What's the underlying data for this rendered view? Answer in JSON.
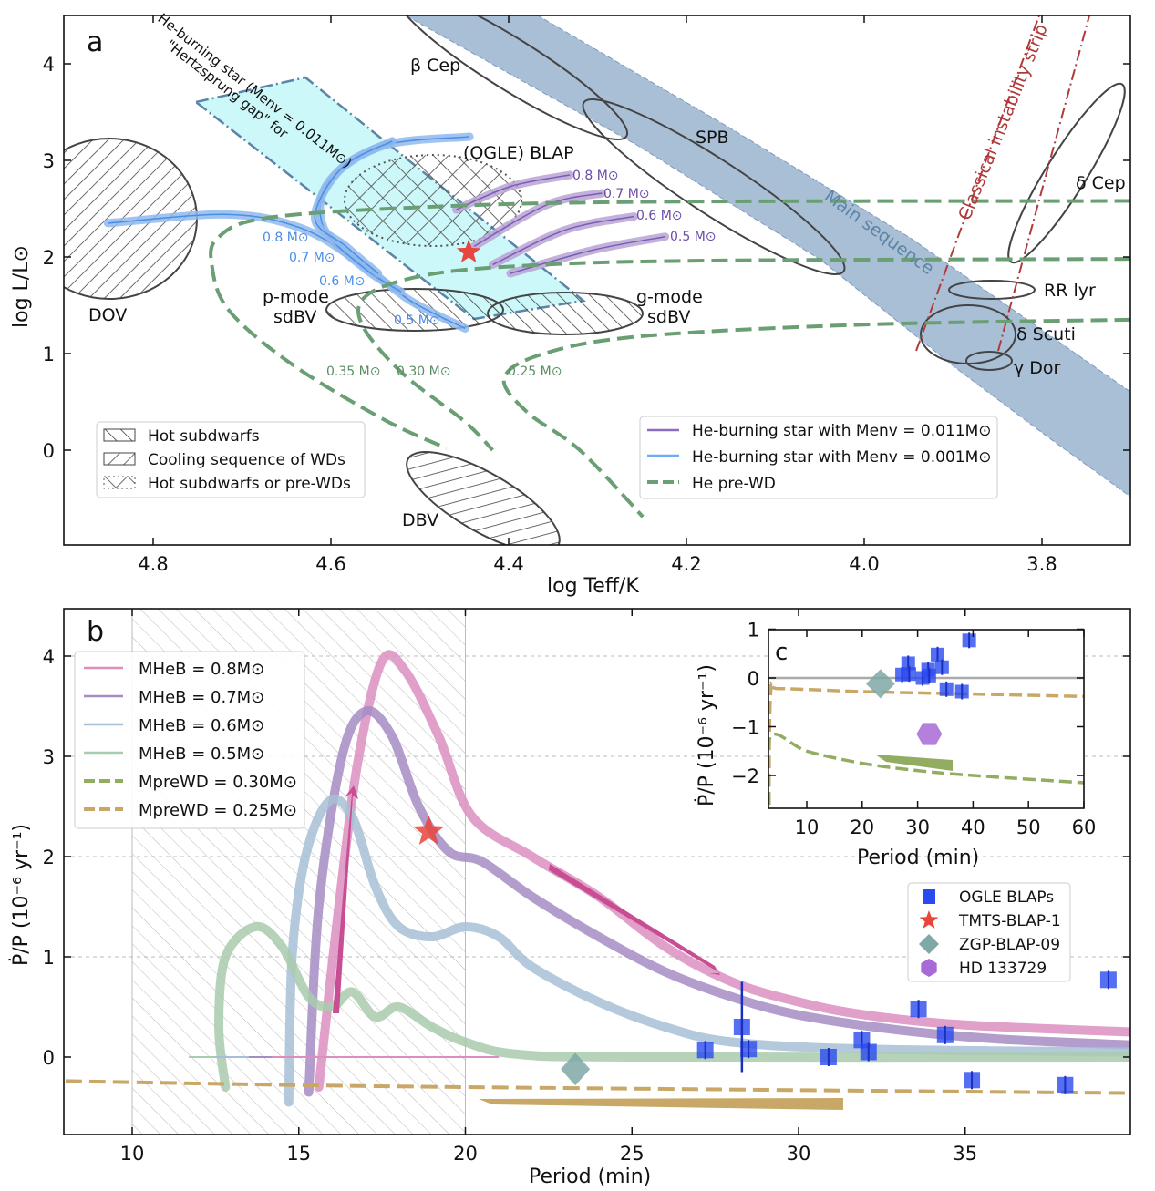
{
  "chart_data": [
    {
      "panel": "a",
      "type": "line",
      "xlabel": "log Teff/K",
      "ylabel": "log L/L⊙",
      "xlim": [
        4.9,
        3.7
      ],
      "ylim": [
        -1.0,
        4.5
      ],
      "xticks": [
        "4.8",
        "4.6",
        "4.4",
        "4.2",
        "4.0",
        "3.8"
      ],
      "xtick_values": [
        4.8,
        4.6,
        4.4,
        4.2,
        4.0,
        3.8
      ],
      "yticks": [
        "0",
        "1",
        "2",
        "3",
        "4"
      ],
      "ytick_values": [
        0,
        1,
        2,
        3,
        4
      ],
      "region_labels": {
        "beta_cep": "β Cep",
        "spb": "SPB",
        "blap": "(OGLE) BLAP",
        "main_sequence": "Main sequence",
        "instability_strip": "Classical instability strip",
        "delta_cep": "δ Cep",
        "rr_lyr": "RR lyr",
        "delta_scuti": "δ Scuti",
        "gamma_dor": "γ Dor",
        "dov": "DOV",
        "dbv": "DBV",
        "p_mode": "p-mode",
        "p_mode2": "sdBV",
        "g_mode": "g-mode",
        "g_mode2": "sdBV",
        "gap_line1": "\"Hertzsprung gap\" for",
        "gap_line2": "He-burning star (Menv = 0.011M⊙)"
      },
      "mass_labels_blue": [
        "0.8 M⊙",
        "0.7 M⊙",
        "0.6 M⊙",
        "0.5 M⊙"
      ],
      "mass_labels_purple": [
        "0.8 M⊙",
        "0.7 M⊙",
        "0.6 M⊙",
        "0.5 M⊙"
      ],
      "mass_labels_green": [
        "0.35 M⊙",
        "0.30 M⊙",
        "0.25 M⊙"
      ],
      "legend_left": [
        "Hot subdwarfs",
        "Cooling sequence of WDs",
        "Hot subdwarfs or pre-WDs"
      ],
      "legend_right": [
        "He-burning star with Menv = 0.011M⊙",
        "He-burning star with Menv = 0.001M⊙",
        "He pre-WD"
      ],
      "tmts_star": {
        "logT": 4.445,
        "logL": 2.05
      },
      "series": [
        {
          "group": "He-burning Menv=0.001",
          "color": "#8fb8ec",
          "points": [
            [
              4.851,
              2.35
            ],
            [
              4.716,
              2.44
            ],
            [
              4.634,
              2.3
            ],
            [
              4.572,
              1.97
            ],
            [
              4.511,
              1.55
            ],
            [
              4.449,
              1.26
            ]
          ]
        },
        {
          "group": "He-burning Menv=0.001",
          "color": "#8fb8ec",
          "points": [
            [
              4.444,
              3.245
            ],
            [
              4.542,
              3.15
            ],
            [
              4.603,
              2.77
            ],
            [
              4.608,
              2.3
            ],
            [
              4.562,
              1.88
            ],
            [
              4.521,
              1.64
            ]
          ]
        },
        {
          "group": "He-burning Menv=0.001",
          "color": "#8fb8ec",
          "points": [
            [
              4.531,
              3.2
            ],
            [
              4.588,
              2.92
            ],
            [
              4.618,
              2.4
            ],
            [
              4.583,
              2.11
            ],
            [
              4.547,
              1.83
            ]
          ]
        },
        {
          "group": "He-burning Menv=0.011",
          "color": "#b9a3d3",
          "points": [
            [
              4.459,
              2.49
            ],
            [
              4.398,
              2.73
            ],
            [
              4.331,
              2.85
            ]
          ]
        },
        {
          "group": "He-burning Menv=0.011",
          "color": "#b9a3d3",
          "points": [
            [
              4.439,
              2.11
            ],
            [
              4.357,
              2.54
            ],
            [
              4.295,
              2.66
            ]
          ]
        },
        {
          "group": "He-burning Menv=0.011",
          "color": "#b9a3d3",
          "points": [
            [
              4.418,
              1.92
            ],
            [
              4.336,
              2.28
            ],
            [
              4.259,
              2.42
            ]
          ]
        },
        {
          "group": "He-burning Menv=0.011",
          "color": "#b9a3d3",
          "points": [
            [
              4.398,
              1.83
            ],
            [
              4.306,
              2.07
            ],
            [
              4.224,
              2.21
            ]
          ]
        },
        {
          "group": "He pre-WD",
          "color": "#6a9f74",
          "points": [
            [
              3.7,
              2.58
            ],
            [
              4.254,
              2.57
            ],
            [
              4.511,
              2.51
            ],
            [
              4.675,
              2.4
            ],
            [
              4.727,
              2.2
            ],
            [
              4.734,
              1.92
            ],
            [
              4.715,
              1.45
            ],
            [
              4.644,
              0.89
            ],
            [
              4.541,
              0.32
            ],
            [
              4.47,
              0.02
            ]
          ]
        },
        {
          "group": "He pre-WD",
          "color": "#6a9f74",
          "points": [
            [
              3.7,
              1.98
            ],
            [
              4.2,
              1.96
            ],
            [
              4.4,
              1.9
            ],
            [
              4.5,
              1.8
            ],
            [
              4.56,
              1.6
            ],
            [
              4.565,
              1.3
            ],
            [
              4.52,
              0.8
            ],
            [
              4.45,
              0.3
            ],
            [
              4.418,
              0.0
            ]
          ]
        },
        {
          "group": "He pre-WD",
          "color": "#6a9f74",
          "points": [
            [
              3.7,
              1.35
            ],
            [
              4.0,
              1.3
            ],
            [
              4.25,
              1.18
            ],
            [
              4.36,
              1.0
            ],
            [
              4.405,
              0.75
            ],
            [
              4.38,
              0.4
            ],
            [
              4.32,
              0.0
            ],
            [
              4.249,
              -0.69
            ]
          ]
        }
      ]
    },
    {
      "panel": "b",
      "type": "line",
      "xlabel": "Period (min)",
      "ylabel": "Ṗ/P (10⁻⁶ yr⁻¹)",
      "xlim": [
        8,
        40
      ],
      "ylim": [
        -0.77,
        4.47
      ],
      "xticks": [
        "10",
        "15",
        "20",
        "25",
        "30",
        "35"
      ],
      "xtick_values": [
        10,
        15,
        20,
        25,
        30,
        35
      ],
      "yticks": [
        "0",
        "1",
        "2",
        "3",
        "4"
      ],
      "ytick_values": [
        0,
        1,
        2,
        3,
        4
      ],
      "grid": "horizontal dashed",
      "shaded_band": [
        10,
        20
      ],
      "legend": [
        "MHeB = 0.8M⊙",
        "MHeB = 0.7M⊙",
        "MHeB = 0.6M⊙",
        "MHeB = 0.5M⊙",
        "MpreWD = 0.30M⊙",
        "MpreWD = 0.25M⊙"
      ],
      "series": [
        {
          "name": "MHeB = 0.8M⊙",
          "color": "#dc8fbf",
          "points": [
            [
              15.6,
              -0.3
            ],
            [
              16.2,
              1.5
            ],
            [
              16.8,
              3.0
            ],
            [
              17.5,
              3.95
            ],
            [
              18.2,
              3.85
            ],
            [
              19.2,
              3.2
            ],
            [
              20.2,
              2.4
            ],
            [
              22,
              2.0
            ],
            [
              24,
              1.6
            ],
            [
              26,
              1.1
            ],
            [
              28,
              0.75
            ],
            [
              30,
              0.55
            ],
            [
              32,
              0.42
            ],
            [
              35,
              0.32
            ],
            [
              40,
              0.25
            ]
          ]
        },
        {
          "name": "MHeB = 0.7M⊙",
          "color": "#a48cc4",
          "points": [
            [
              15.3,
              -0.35
            ],
            [
              15.6,
              1.5
            ],
            [
              16.3,
              3.0
            ],
            [
              17.0,
              3.45
            ],
            [
              17.8,
              3.2
            ],
            [
              18.6,
              2.5
            ],
            [
              19.5,
              2.05
            ],
            [
              20.5,
              1.95
            ],
            [
              22,
              1.6
            ],
            [
              24,
              1.2
            ],
            [
              26,
              0.85
            ],
            [
              28,
              0.6
            ],
            [
              30,
              0.42
            ],
            [
              33,
              0.27
            ],
            [
              36,
              0.18
            ],
            [
              40,
              0.12
            ]
          ]
        },
        {
          "name": "MHeB = 0.6M⊙",
          "color": "#a7bfd6",
          "points": [
            [
              14.7,
              -0.45
            ],
            [
              14.8,
              1.0
            ],
            [
              15.2,
              2.0
            ],
            [
              15.9,
              2.55
            ],
            [
              16.6,
              2.4
            ],
            [
              17.3,
              1.7
            ],
            [
              18.0,
              1.3
            ],
            [
              19,
              1.2
            ],
            [
              20,
              1.3
            ],
            [
              21,
              1.2
            ],
            [
              22,
              0.9
            ],
            [
              24,
              0.55
            ],
            [
              26,
              0.3
            ],
            [
              28,
              0.15
            ],
            [
              32,
              0.08
            ],
            [
              40,
              0.05
            ]
          ]
        },
        {
          "name": "MHeB = 0.5M⊙",
          "color": "#a9cbae",
          "points": [
            [
              12.8,
              -0.3
            ],
            [
              12.6,
              0.3
            ],
            [
              12.8,
              1.0
            ],
            [
              13.7,
              1.3
            ],
            [
              14.5,
              1.1
            ],
            [
              15.3,
              0.6
            ],
            [
              16,
              0.5
            ],
            [
              16.6,
              0.65
            ],
            [
              17.3,
              0.4
            ],
            [
              18,
              0.5
            ],
            [
              19,
              0.3
            ],
            [
              20,
              0.15
            ],
            [
              21.5,
              0.03
            ],
            [
              25,
              0.0
            ],
            [
              40,
              0.0
            ]
          ]
        },
        {
          "name": "MpreWD = 0.25M⊙",
          "color": "#c9a867",
          "dashed": true,
          "points": [
            [
              8,
              -0.24
            ],
            [
              15,
              -0.28
            ],
            [
              20,
              -0.3
            ],
            [
              30,
              -0.33
            ],
            [
              40,
              -0.36
            ]
          ]
        }
      ],
      "observations": {
        "ogle_blaps": [
          [
            27.2,
            0.07
          ],
          [
            28.3,
            0.3
          ],
          [
            28.5,
            0.08
          ],
          [
            30.9,
            0.0
          ],
          [
            31.9,
            0.17
          ],
          [
            32.1,
            0.05
          ],
          [
            33.6,
            0.48
          ],
          [
            34.4,
            0.22
          ],
          [
            35.2,
            -0.23
          ],
          [
            38.0,
            -0.28
          ],
          [
            39.3,
            0.77
          ]
        ],
        "tmts_blap_1": [
          18.9,
          2.25
        ],
        "zgp_blap_09": [
          23.3,
          -0.12
        ]
      }
    },
    {
      "panel": "c",
      "type": "scatter",
      "xlabel": "Period (min)",
      "ylabel": "Ṗ/P (10⁻⁶ yr⁻¹)",
      "xlim": [
        3,
        60
      ],
      "ylim": [
        -2.67,
        1
      ],
      "xticks": [
        "10",
        "20",
        "30",
        "40",
        "50",
        "60"
      ],
      "xtick_values": [
        10,
        20,
        30,
        40,
        50,
        60
      ],
      "yticks": [
        "1",
        "0",
        "−1",
        "−2"
      ],
      "ytick_values": [
        1,
        0,
        -1,
        -2
      ],
      "legend": [
        "OGLE BLAPs",
        "TMTS-BLAP-1",
        "ZGP-BLAP-09",
        "HD 133729"
      ],
      "series": [
        {
          "name": "MpreWD = 0.25M⊙",
          "color": "#c9a867",
          "points": [
            [
              3.2,
              -2.6
            ],
            [
              3.5,
              -0.3
            ],
            [
              5,
              -0.22
            ],
            [
              20,
              -0.28
            ],
            [
              40,
              -0.33
            ],
            [
              60,
              -0.38
            ]
          ]
        },
        {
          "name": "MpreWD = 0.30M⊙",
          "color": "#92ad62",
          "points": [
            [
              3.2,
              -2.6
            ],
            [
              3.5,
              -1.2
            ],
            [
              10,
              -1.5
            ],
            [
              20,
              -1.75
            ],
            [
              30,
              -1.9
            ],
            [
              40,
              -2.0
            ],
            [
              60,
              -2.15
            ]
          ]
        }
      ],
      "observations": {
        "ogle_blaps": [
          [
            27.2,
            0.07
          ],
          [
            28.3,
            0.3
          ],
          [
            28.5,
            0.08
          ],
          [
            30.9,
            0.0
          ],
          [
            31.9,
            0.17
          ],
          [
            32.1,
            0.05
          ],
          [
            33.6,
            0.48
          ],
          [
            34.4,
            0.22
          ],
          [
            35.2,
            -0.23
          ],
          [
            38.0,
            -0.28
          ],
          [
            39.3,
            0.77
          ]
        ],
        "zgp_blap_09": [
          23.3,
          -0.12
        ],
        "hd_133729": [
          32.1,
          -1.15
        ]
      }
    }
  ],
  "panel_labels": {
    "a": "a",
    "b": "b",
    "c": "c"
  },
  "colors": {
    "ogle": "#2a4bf0",
    "tmts": "#e8453c",
    "zgp": "#7fa8a6",
    "hd": "#a86ad6",
    "ms_band": "#a9bfd6",
    "gap": "#c8f7fa",
    "strip": "#b03a3a"
  }
}
